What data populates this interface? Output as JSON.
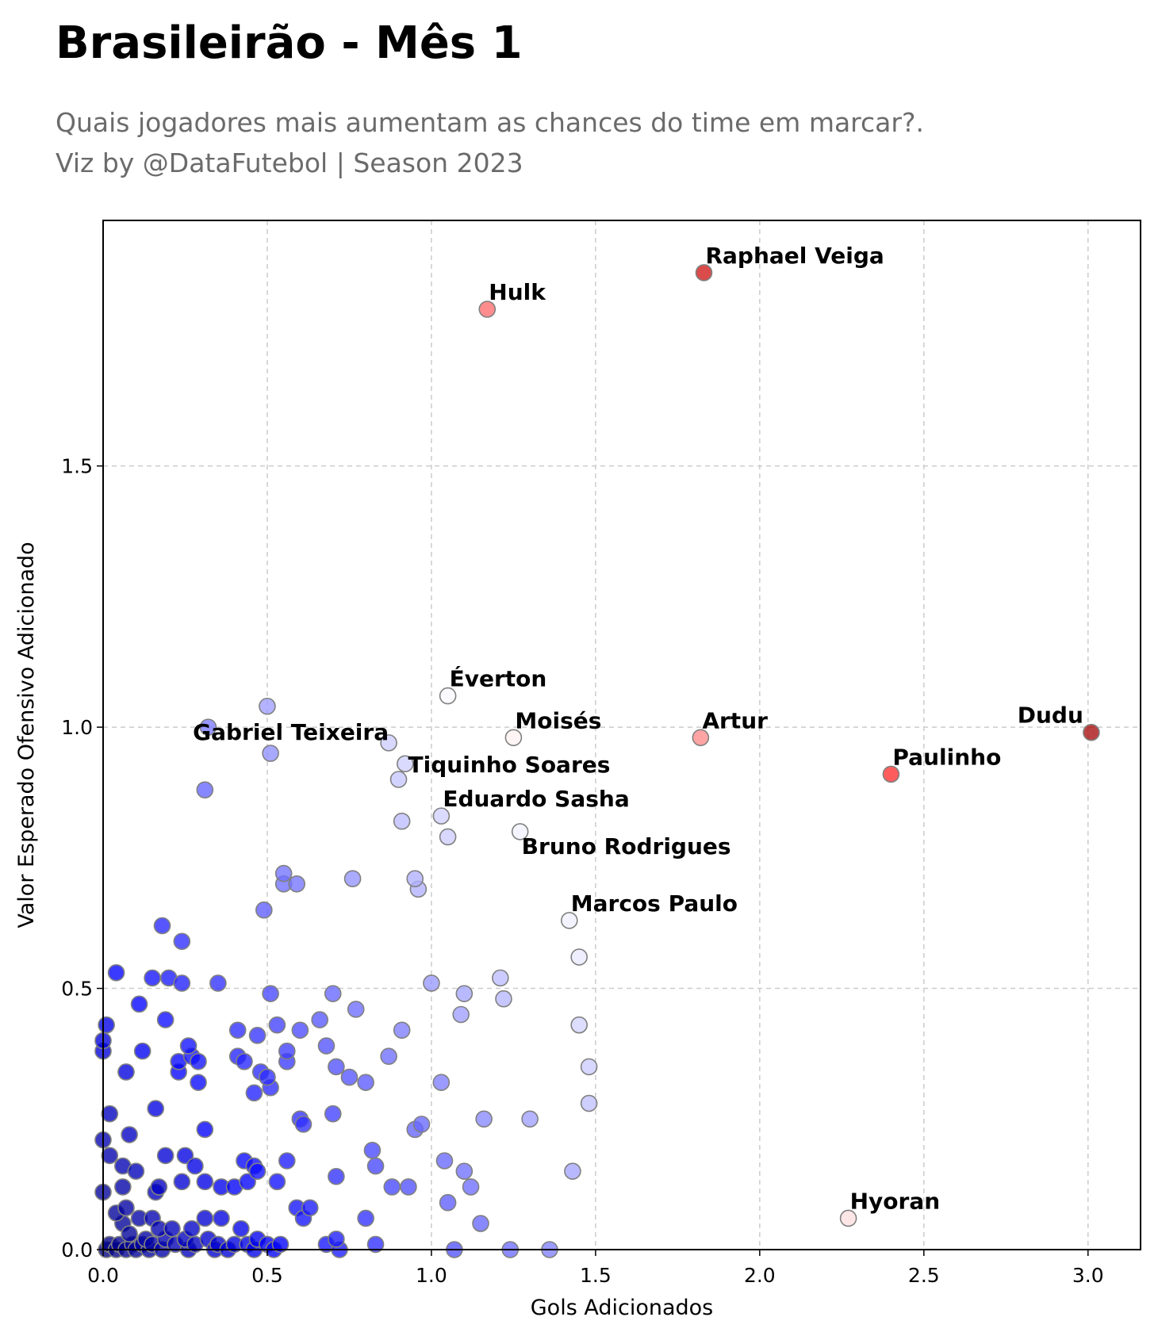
{
  "title": "Brasileirão - Mês 1",
  "subtitle_line1": "Quais jogadores mais aumentam as chances do time em marcar?.",
  "subtitle_line2": "Viz by @DataFutebol | Season 2023",
  "colors": {
    "low": "#0000ff",
    "mid": "#ffffff",
    "high": "#7f0000",
    "grid": "#cccccc",
    "marker_edge": "#808080"
  },
  "chart_data": {
    "type": "scatter",
    "xlabel": "Gols Adicionados",
    "ylabel": "Valor Esperado Ofensivo Adicionado",
    "xlim": [
      0.0,
      3.16
    ],
    "ylim": [
      0.0,
      1.97
    ],
    "xticks": [
      "0.0",
      "0.5",
      "1.0",
      "1.5",
      "2.0",
      "2.5",
      "3.0"
    ],
    "yticks": [
      "0.0",
      "0.5",
      "1.0",
      "1.5"
    ],
    "grid": true,
    "color_encoding": "diverging blue-white-red colormap",
    "labeled_points": [
      {
        "name": "Raphael Veiga",
        "x": 1.83,
        "y": 1.87
      },
      {
        "name": "Hulk",
        "x": 1.17,
        "y": 1.8
      },
      {
        "name": "Éverton",
        "x": 1.05,
        "y": 1.06
      },
      {
        "name": "Moisés",
        "x": 1.25,
        "y": 0.98
      },
      {
        "name": "Artur",
        "x": 1.82,
        "y": 0.98
      },
      {
        "name": "Dudu",
        "x": 3.01,
        "y": 0.99
      },
      {
        "name": "Paulinho",
        "x": 2.4,
        "y": 0.91
      },
      {
        "name": "Gabriel Teixeira",
        "x": 0.87,
        "y": 0.97
      },
      {
        "name": "Tiquinho Soares",
        "x": 0.9,
        "y": 0.9
      },
      {
        "name": "Eduardo Sasha",
        "x": 1.03,
        "y": 0.83
      },
      {
        "name": "Bruno Rodrigues",
        "x": 1.27,
        "y": 0.8
      },
      {
        "name": "Marcos Paulo",
        "x": 1.42,
        "y": 0.63
      },
      {
        "name": "Hyoran",
        "x": 2.27,
        "y": 0.06
      }
    ],
    "points": [
      {
        "x": 1.83,
        "y": 1.87
      },
      {
        "x": 1.17,
        "y": 1.8
      },
      {
        "x": 1.05,
        "y": 1.06
      },
      {
        "x": 1.25,
        "y": 0.98
      },
      {
        "x": 1.82,
        "y": 0.98
      },
      {
        "x": 3.01,
        "y": 0.99
      },
      {
        "x": 2.4,
        "y": 0.91
      },
      {
        "x": 0.87,
        "y": 0.97
      },
      {
        "x": 0.9,
        "y": 0.9
      },
      {
        "x": 1.03,
        "y": 0.83
      },
      {
        "x": 1.27,
        "y": 0.8
      },
      {
        "x": 1.42,
        "y": 0.63
      },
      {
        "x": 2.27,
        "y": 0.06
      },
      {
        "x": 0.5,
        "y": 1.04
      },
      {
        "x": 0.51,
        "y": 0.95
      },
      {
        "x": 0.32,
        "y": 1.0
      },
      {
        "x": 0.31,
        "y": 0.88
      },
      {
        "x": 0.92,
        "y": 0.93
      },
      {
        "x": 0.91,
        "y": 0.82
      },
      {
        "x": 1.05,
        "y": 0.79
      },
      {
        "x": 0.55,
        "y": 0.72
      },
      {
        "x": 0.55,
        "y": 0.7
      },
      {
        "x": 0.59,
        "y": 0.7
      },
      {
        "x": 0.76,
        "y": 0.71
      },
      {
        "x": 0.95,
        "y": 0.71
      },
      {
        "x": 0.96,
        "y": 0.69
      },
      {
        "x": 0.49,
        "y": 0.65
      },
      {
        "x": 1.45,
        "y": 0.56
      },
      {
        "x": 1.45,
        "y": 0.43
      },
      {
        "x": 1.48,
        "y": 0.35
      },
      {
        "x": 1.48,
        "y": 0.28
      },
      {
        "x": 1.21,
        "y": 0.52
      },
      {
        "x": 1.22,
        "y": 0.48
      },
      {
        "x": 1.0,
        "y": 0.51
      },
      {
        "x": 1.1,
        "y": 0.49
      },
      {
        "x": 1.09,
        "y": 0.45
      },
      {
        "x": 0.91,
        "y": 0.42
      },
      {
        "x": 1.03,
        "y": 0.32
      },
      {
        "x": 1.3,
        "y": 0.25
      },
      {
        "x": 1.16,
        "y": 0.25
      },
      {
        "x": 1.43,
        "y": 0.15
      },
      {
        "x": 0.95,
        "y": 0.23
      },
      {
        "x": 0.97,
        "y": 0.24
      },
      {
        "x": 1.04,
        "y": 0.17
      },
      {
        "x": 1.1,
        "y": 0.15
      },
      {
        "x": 1.12,
        "y": 0.12
      },
      {
        "x": 1.05,
        "y": 0.09
      },
      {
        "x": 1.15,
        "y": 0.05
      },
      {
        "x": 1.07,
        "y": 0.0
      },
      {
        "x": 1.24,
        "y": 0.0
      },
      {
        "x": 1.36,
        "y": 0.0
      },
      {
        "x": 0.18,
        "y": 0.62
      },
      {
        "x": 0.24,
        "y": 0.59
      },
      {
        "x": 0.04,
        "y": 0.53
      },
      {
        "x": 0.15,
        "y": 0.52
      },
      {
        "x": 0.2,
        "y": 0.52
      },
      {
        "x": 0.24,
        "y": 0.51
      },
      {
        "x": 0.35,
        "y": 0.51
      },
      {
        "x": 0.51,
        "y": 0.49
      },
      {
        "x": 0.7,
        "y": 0.49
      },
      {
        "x": 0.11,
        "y": 0.47
      },
      {
        "x": 0.19,
        "y": 0.44
      },
      {
        "x": 0.01,
        "y": 0.43
      },
      {
        "x": 0.53,
        "y": 0.43
      },
      {
        "x": 0.6,
        "y": 0.42
      },
      {
        "x": 0.66,
        "y": 0.44
      },
      {
        "x": 0.77,
        "y": 0.46
      },
      {
        "x": 0.41,
        "y": 0.42
      },
      {
        "x": 0.47,
        "y": 0.41
      },
      {
        "x": 0.0,
        "y": 0.4
      },
      {
        "x": 0.0,
        "y": 0.38
      },
      {
        "x": 0.12,
        "y": 0.38
      },
      {
        "x": 0.26,
        "y": 0.39
      },
      {
        "x": 0.27,
        "y": 0.37
      },
      {
        "x": 0.29,
        "y": 0.36
      },
      {
        "x": 0.23,
        "y": 0.36
      },
      {
        "x": 0.23,
        "y": 0.34
      },
      {
        "x": 0.41,
        "y": 0.37
      },
      {
        "x": 0.43,
        "y": 0.36
      },
      {
        "x": 0.48,
        "y": 0.34
      },
      {
        "x": 0.5,
        "y": 0.33
      },
      {
        "x": 0.56,
        "y": 0.38
      },
      {
        "x": 0.56,
        "y": 0.36
      },
      {
        "x": 0.68,
        "y": 0.39
      },
      {
        "x": 0.71,
        "y": 0.35
      },
      {
        "x": 0.75,
        "y": 0.33
      },
      {
        "x": 0.8,
        "y": 0.32
      },
      {
        "x": 0.87,
        "y": 0.37
      },
      {
        "x": 0.07,
        "y": 0.34
      },
      {
        "x": 0.29,
        "y": 0.32
      },
      {
        "x": 0.46,
        "y": 0.3
      },
      {
        "x": 0.51,
        "y": 0.31
      },
      {
        "x": 0.16,
        "y": 0.27
      },
      {
        "x": 0.02,
        "y": 0.26
      },
      {
        "x": 0.6,
        "y": 0.25
      },
      {
        "x": 0.61,
        "y": 0.24
      },
      {
        "x": 0.7,
        "y": 0.26
      },
      {
        "x": 0.31,
        "y": 0.23
      },
      {
        "x": 0.08,
        "y": 0.22
      },
      {
        "x": 0.0,
        "y": 0.21
      },
      {
        "x": 0.02,
        "y": 0.18
      },
      {
        "x": 0.06,
        "y": 0.16
      },
      {
        "x": 0.1,
        "y": 0.15
      },
      {
        "x": 0.19,
        "y": 0.18
      },
      {
        "x": 0.25,
        "y": 0.18
      },
      {
        "x": 0.28,
        "y": 0.16
      },
      {
        "x": 0.43,
        "y": 0.17
      },
      {
        "x": 0.46,
        "y": 0.16
      },
      {
        "x": 0.47,
        "y": 0.15
      },
      {
        "x": 0.56,
        "y": 0.17
      },
      {
        "x": 0.82,
        "y": 0.19
      },
      {
        "x": 0.83,
        "y": 0.16
      },
      {
        "x": 0.71,
        "y": 0.14
      },
      {
        "x": 0.53,
        "y": 0.13
      },
      {
        "x": 0.44,
        "y": 0.13
      },
      {
        "x": 0.4,
        "y": 0.12
      },
      {
        "x": 0.36,
        "y": 0.12
      },
      {
        "x": 0.31,
        "y": 0.13
      },
      {
        "x": 0.24,
        "y": 0.13
      },
      {
        "x": 0.17,
        "y": 0.12
      },
      {
        "x": 0.16,
        "y": 0.11
      },
      {
        "x": 0.06,
        "y": 0.12
      },
      {
        "x": 0.0,
        "y": 0.11
      },
      {
        "x": 0.88,
        "y": 0.12
      },
      {
        "x": 0.93,
        "y": 0.12
      },
      {
        "x": 0.59,
        "y": 0.08
      },
      {
        "x": 0.63,
        "y": 0.08
      },
      {
        "x": 0.61,
        "y": 0.06
      },
      {
        "x": 0.8,
        "y": 0.06
      },
      {
        "x": 0.31,
        "y": 0.06
      },
      {
        "x": 0.36,
        "y": 0.06
      },
      {
        "x": 0.07,
        "y": 0.08
      },
      {
        "x": 0.04,
        "y": 0.07
      },
      {
        "x": 0.11,
        "y": 0.06
      },
      {
        "x": 0.15,
        "y": 0.06
      },
      {
        "x": 0.06,
        "y": 0.05
      },
      {
        "x": 0.17,
        "y": 0.04
      },
      {
        "x": 0.21,
        "y": 0.04
      },
      {
        "x": 0.27,
        "y": 0.04
      },
      {
        "x": 0.42,
        "y": 0.04
      },
      {
        "x": 0.08,
        "y": 0.03
      },
      {
        "x": 0.13,
        "y": 0.02
      },
      {
        "x": 0.19,
        "y": 0.02
      },
      {
        "x": 0.25,
        "y": 0.02
      },
      {
        "x": 0.32,
        "y": 0.02
      },
      {
        "x": 0.47,
        "y": 0.02
      },
      {
        "x": 0.71,
        "y": 0.02
      },
      {
        "x": 0.02,
        "y": 0.01
      },
      {
        "x": 0.05,
        "y": 0.01
      },
      {
        "x": 0.09,
        "y": 0.01
      },
      {
        "x": 0.12,
        "y": 0.01
      },
      {
        "x": 0.15,
        "y": 0.01
      },
      {
        "x": 0.22,
        "y": 0.01
      },
      {
        "x": 0.28,
        "y": 0.01
      },
      {
        "x": 0.35,
        "y": 0.01
      },
      {
        "x": 0.4,
        "y": 0.01
      },
      {
        "x": 0.44,
        "y": 0.01
      },
      {
        "x": 0.5,
        "y": 0.01
      },
      {
        "x": 0.54,
        "y": 0.01
      },
      {
        "x": 0.68,
        "y": 0.01
      },
      {
        "x": 0.83,
        "y": 0.01
      },
      {
        "x": 0.01,
        "y": 0.0
      },
      {
        "x": 0.04,
        "y": 0.0
      },
      {
        "x": 0.07,
        "y": 0.0
      },
      {
        "x": 0.1,
        "y": 0.0
      },
      {
        "x": 0.14,
        "y": 0.0
      },
      {
        "x": 0.18,
        "y": 0.0
      },
      {
        "x": 0.26,
        "y": 0.0
      },
      {
        "x": 0.34,
        "y": 0.0
      },
      {
        "x": 0.38,
        "y": 0.0
      },
      {
        "x": 0.46,
        "y": 0.0
      },
      {
        "x": 0.52,
        "y": 0.0
      },
      {
        "x": 0.72,
        "y": 0.0
      }
    ]
  }
}
